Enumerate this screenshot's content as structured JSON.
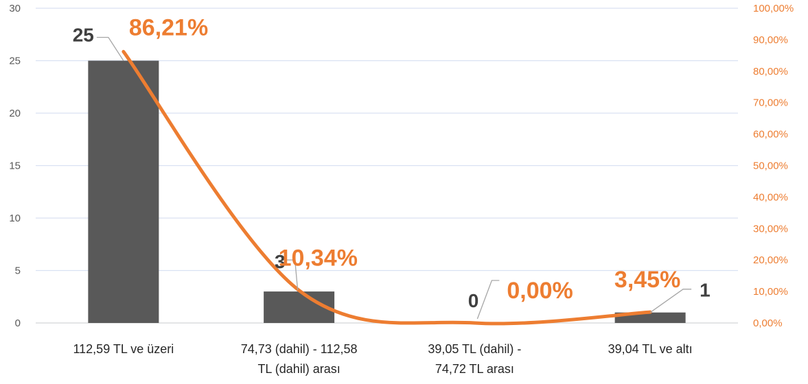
{
  "chart_data": {
    "type": "bar",
    "categories": [
      [
        "112,59 TL ve üzeri"
      ],
      [
        "74,73 (dahil) - 112,58",
        "TL (dahil) arası"
      ],
      [
        "39,05 TL (dahil) -",
        "74,72 TL arası"
      ],
      [
        "39,04 TL ve altı"
      ]
    ],
    "bar_values": [
      25,
      3,
      0,
      1
    ],
    "bar_labels": [
      "25",
      "3",
      "0",
      "1"
    ],
    "line_values": [
      86.21,
      10.34,
      0.0,
      3.45
    ],
    "line_labels": [
      "86,21%",
      "10,34%",
      "0,00%",
      "3,45%"
    ],
    "left_axis": {
      "min": 0,
      "max": 30,
      "ticks": [
        "0",
        "5",
        "10",
        "15",
        "20",
        "25",
        "30"
      ]
    },
    "right_axis": {
      "min": 0,
      "max": 100,
      "ticks": [
        "0,00%",
        "10,00%",
        "20,00%",
        "30,00%",
        "40,00%",
        "50,00%",
        "60,00%",
        "70,00%",
        "80,00%",
        "90,00%",
        "100,00%"
      ]
    },
    "grid": true,
    "colors": {
      "bar": "#595959",
      "line": "#ED7D31",
      "grid": "#D9E1F2",
      "leader": "#A6A6A6"
    }
  }
}
